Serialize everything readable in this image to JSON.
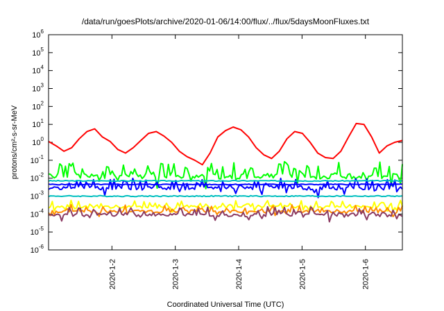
{
  "chart_data": {
    "type": "line",
    "title": "/data/run/goesPlots/archive/2020-01-06/14:00/flux/../flux/5daysMoonFluxes.txt",
    "xlabel": "Coordinated Universal Time (UTC)",
    "ylabel": "protons/cm²-s-sr-MeV",
    "x_range": [
      "2020-01-01 00:00",
      "2020-01-06 14:00"
    ],
    "x_ticks": [
      "2020-1-2",
      "2020-1-3",
      "2020-1-4",
      "2020-1-5",
      "2020-1-6"
    ],
    "yscale": "log",
    "ylim": [
      1e-06,
      1000000.0
    ],
    "y_ticks": [
      {
        "base": "10",
        "exp": "-6"
      },
      {
        "base": "10",
        "exp": "-5"
      },
      {
        "base": "10",
        "exp": "-4"
      },
      {
        "base": "10",
        "exp": "-3"
      },
      {
        "base": "10",
        "exp": "-2"
      },
      {
        "base": "10",
        "exp": "-1"
      },
      {
        "base": "10",
        "exp": "0"
      },
      {
        "base": "10",
        "exp": "1"
      },
      {
        "base": "10",
        "exp": "2"
      },
      {
        "base": "10",
        "exp": "3"
      },
      {
        "base": "10",
        "exp": "4"
      },
      {
        "base": "10",
        "exp": "5"
      },
      {
        "base": "10",
        "exp": "6"
      }
    ],
    "grid": false,
    "series": [
      {
        "color": "#ff0000",
        "style": "smooth",
        "log10_values": [
          0.05,
          -0.2,
          -0.5,
          -0.3,
          0.2,
          0.6,
          0.75,
          0.3,
          0.05,
          -0.4,
          -0.6,
          -0.3,
          0.1,
          0.5,
          0.6,
          0.35,
          0.0,
          -0.5,
          -0.8,
          -1.0,
          -1.25,
          -0.6,
          0.3,
          0.65,
          0.85,
          0.7,
          0.3,
          -0.3,
          -0.7,
          -0.9,
          -0.5,
          0.2,
          0.6,
          0.5,
          0.0,
          -0.6,
          -0.85,
          -0.9,
          -0.5,
          0.3,
          1.05,
          1.0,
          0.3,
          -0.6,
          -0.2,
          0.0,
          0.1
        ]
      },
      {
        "color": "#00ff00",
        "style": "noisy",
        "base": -1.9,
        "amp": 0.75,
        "seed": 1
      },
      {
        "color": "#0000ff",
        "style": "noisy",
        "base": -2.55,
        "amp": 0.55,
        "seed": 2
      },
      {
        "color": "#00bfbf",
        "style": "flat",
        "base": -2.15,
        "amp": 0.05,
        "seed": 3
      },
      {
        "color": "#00bfbf",
        "style": "flat",
        "base": -3.0,
        "amp": 0.06,
        "seed": 4
      },
      {
        "color": "#0000ff",
        "style": "flat",
        "base": -2.35,
        "amp": 0.05,
        "seed": 5
      },
      {
        "color": "#ffff00",
        "style": "noisy",
        "base": -3.6,
        "amp": 0.35,
        "seed": 6
      },
      {
        "color": "#ff8c00",
        "style": "noisy",
        "base": -3.85,
        "amp": 0.35,
        "seed": 7
      },
      {
        "color": "#8b3a62",
        "style": "noisy",
        "base": -4.05,
        "amp": 0.45,
        "seed": 8
      }
    ]
  }
}
